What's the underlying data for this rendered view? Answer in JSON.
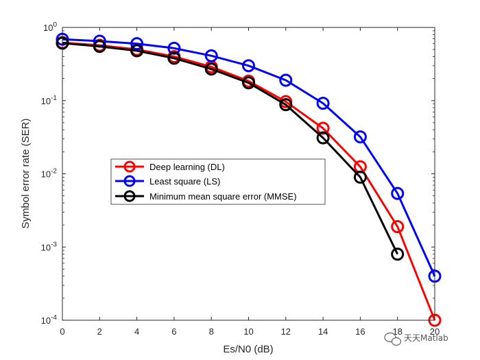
{
  "chart_data": {
    "type": "line",
    "yscale": "log",
    "xlabel": "Es/N0 (dB)",
    "ylabel": "Symbol error rate (SER)",
    "xlim": [
      0,
      20
    ],
    "ylim": [
      0.0001,
      1
    ],
    "x_ticks": [
      0,
      2,
      4,
      6,
      8,
      10,
      12,
      14,
      16,
      18,
      20
    ],
    "y_ticks": [
      {
        "value": 0.0001,
        "base": "10",
        "exp": "-4"
      },
      {
        "value": 0.001,
        "base": "10",
        "exp": "-3"
      },
      {
        "value": 0.01,
        "base": "10",
        "exp": "-2"
      },
      {
        "value": 0.1,
        "base": "10",
        "exp": "-1"
      },
      {
        "value": 1,
        "base": "10",
        "exp": "0"
      }
    ],
    "legend_location": "center-left",
    "series": [
      {
        "name": "Deep learning (DL)",
        "color": "#ff0000",
        "marker": "circle",
        "x": [
          0,
          2,
          4,
          6,
          8,
          10,
          12,
          14,
          16,
          18,
          20
        ],
        "y": [
          0.62,
          0.57,
          0.5,
          0.4,
          0.29,
          0.185,
          0.097,
          0.042,
          0.0125,
          0.0019,
          0.0001
        ]
      },
      {
        "name": "Least square (LS)",
        "color": "#0000ff",
        "marker": "circle",
        "x": [
          0,
          2,
          4,
          6,
          8,
          10,
          12,
          14,
          16,
          18,
          20
        ],
        "y": [
          0.69,
          0.65,
          0.6,
          0.52,
          0.41,
          0.3,
          0.19,
          0.092,
          0.032,
          0.0054,
          0.0004
        ]
      },
      {
        "name": "Minimum mean square error (MMSE)",
        "color": "#000000",
        "marker": "circle",
        "x": [
          0,
          2,
          4,
          6,
          8,
          10,
          12,
          14,
          16,
          18
        ],
        "y": [
          0.61,
          0.55,
          0.48,
          0.38,
          0.27,
          0.175,
          0.088,
          0.031,
          0.009,
          0.0008
        ]
      }
    ]
  },
  "watermark": {
    "text": "天天Matlab",
    "icon": "wechat-icon"
  }
}
